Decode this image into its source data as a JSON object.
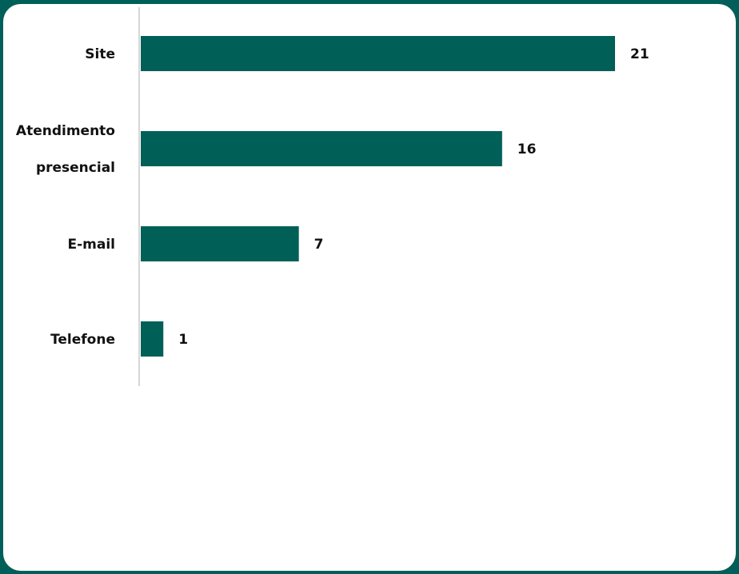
{
  "colors": {
    "frame": "#005f58",
    "bar": "#006058",
    "axis": "#c8c8c8",
    "text": "#111111",
    "card": "#ffffff"
  },
  "chart_data": {
    "type": "bar",
    "orientation": "horizontal",
    "categories": [
      [
        "Site"
      ],
      [
        "Atendimento",
        "presencial"
      ],
      [
        "E-mail"
      ],
      [
        "Telefone"
      ]
    ],
    "values": [
      21,
      16,
      7,
      1
    ],
    "data_labels": [
      "21",
      "16",
      "7",
      "1"
    ],
    "title": "",
    "xlabel": "",
    "ylabel": "",
    "xlim": [
      0,
      21
    ],
    "grid": false,
    "legend": "none"
  }
}
